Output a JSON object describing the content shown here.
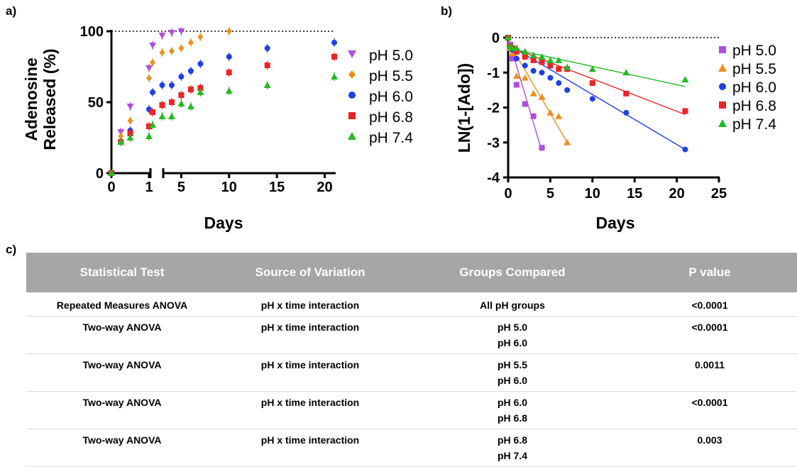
{
  "panels": {
    "a": "a)",
    "b": "b)",
    "c": "c)"
  },
  "chart_data": [
    {
      "type": "scatter",
      "panel": "a",
      "xlabel": "Days",
      "ylabel": "Adenosine Released (%)",
      "ylabel_lines": [
        "Adenosine",
        "Released (%)"
      ],
      "x_axis": "broken: 0–1 then 2–21",
      "x_ticks": [
        "0",
        "1",
        "5",
        "10",
        "15",
        "20"
      ],
      "y_ticks": [
        "0",
        "50",
        "100"
      ],
      "ylim": [
        0,
        100
      ],
      "reference_line": 100,
      "legend_position": "right",
      "series": [
        {
          "name": "pH 5.0",
          "color": "#b04ee0",
          "marker": "triangle-down",
          "points": [
            [
              0,
              0
            ],
            [
              0.25,
              29
            ],
            [
              0.5,
              47
            ],
            [
              1,
              74
            ],
            [
              2,
              90
            ],
            [
              3,
              97
            ],
            [
              4,
              99
            ],
            [
              5,
              100
            ]
          ]
        },
        {
          "name": "pH 5.5",
          "color": "#f0901c",
          "marker": "diamond",
          "points": [
            [
              0,
              0
            ],
            [
              0.25,
              26
            ],
            [
              0.5,
              37
            ],
            [
              1,
              67
            ],
            [
              2,
              78
            ],
            [
              3,
              85
            ],
            [
              4,
              86
            ],
            [
              5,
              88
            ],
            [
              6,
              92
            ],
            [
              7,
              96
            ],
            [
              10,
              100
            ]
          ]
        },
        {
          "name": "pH 6.0",
          "color": "#1f3fe8",
          "marker": "circle",
          "points": [
            [
              0,
              0
            ],
            [
              0.25,
              22
            ],
            [
              0.5,
              30
            ],
            [
              1,
              45
            ],
            [
              2,
              57
            ],
            [
              3,
              62
            ],
            [
              4,
              62
            ],
            [
              5,
              68
            ],
            [
              6,
              72
            ],
            [
              7,
              77
            ],
            [
              10,
              82
            ],
            [
              14,
              88
            ],
            [
              21,
              92
            ]
          ]
        },
        {
          "name": "pH 6.8",
          "color": "#ef2323",
          "marker": "square",
          "points": [
            [
              0,
              0
            ],
            [
              0.25,
              22
            ],
            [
              0.5,
              28
            ],
            [
              1,
              33
            ],
            [
              2,
              43
            ],
            [
              3,
              48
            ],
            [
              4,
              50
            ],
            [
              5,
              55
            ],
            [
              6,
              59
            ],
            [
              7,
              60
            ],
            [
              10,
              71
            ],
            [
              14,
              76
            ],
            [
              21,
              82
            ]
          ]
        },
        {
          "name": "pH 7.4",
          "color": "#22bb22",
          "marker": "triangle-up",
          "points": [
            [
              0,
              0
            ],
            [
              0.25,
              22
            ],
            [
              0.5,
              25
            ],
            [
              1,
              26
            ],
            [
              2,
              34
            ],
            [
              3,
              40
            ],
            [
              4,
              40
            ],
            [
              5,
              49
            ],
            [
              6,
              47
            ],
            [
              7,
              57
            ],
            [
              10,
              58
            ],
            [
              14,
              62
            ],
            [
              21,
              68
            ]
          ]
        }
      ]
    },
    {
      "type": "scatter",
      "panel": "b",
      "xlabel": "Days",
      "ylabel": "LN(1-[Ado])",
      "x_ticks": [
        "0",
        "5",
        "10",
        "15",
        "20",
        "25"
      ],
      "y_ticks": [
        "0",
        "-1",
        "-2",
        "-3",
        "-4"
      ],
      "xlim": [
        0,
        25
      ],
      "ylim": [
        -4,
        0
      ],
      "reference_line": 0,
      "fit_lines": true,
      "legend_position": "right",
      "series": [
        {
          "name": "pH 5.0",
          "color": "#b04ee0",
          "marker": "square",
          "points": [
            [
              0,
              0
            ],
            [
              0.25,
              -0.2
            ],
            [
              0.5,
              -0.6
            ],
            [
              1,
              -1.35
            ],
            [
              2,
              -1.9
            ],
            [
              3,
              -2.25
            ],
            [
              4,
              -3.15
            ]
          ],
          "fit": [
            [
              0,
              0
            ],
            [
              4,
              -3.25
            ]
          ]
        },
        {
          "name": "pH 5.5",
          "color": "#f0901c",
          "marker": "triangle-up",
          "points": [
            [
              0,
              0
            ],
            [
              0.25,
              -0.3
            ],
            [
              0.5,
              -0.45
            ],
            [
              1,
              -1.1
            ],
            [
              2,
              -1.15
            ],
            [
              3,
              -1.6
            ],
            [
              4,
              -1.7
            ],
            [
              5,
              -2.15
            ],
            [
              6,
              -2.25
            ],
            [
              7,
              -3.0
            ]
          ],
          "fit": [
            [
              0,
              -0.1
            ],
            [
              7,
              -3.0
            ]
          ]
        },
        {
          "name": "pH 6.0",
          "color": "#1f3fe8",
          "marker": "circle",
          "points": [
            [
              0,
              0
            ],
            [
              0.25,
              -0.25
            ],
            [
              0.5,
              -0.35
            ],
            [
              1,
              -0.6
            ],
            [
              2,
              -0.8
            ],
            [
              3,
              -0.95
            ],
            [
              4,
              -1.0
            ],
            [
              5,
              -1.15
            ],
            [
              6,
              -1.3
            ],
            [
              7,
              -1.5
            ],
            [
              10,
              -1.75
            ],
            [
              14,
              -2.15
            ],
            [
              21,
              -3.2
            ]
          ],
          "fit": [
            [
              0,
              -0.2
            ],
            [
              21,
              -3.2
            ]
          ]
        },
        {
          "name": "pH 6.8",
          "color": "#ef2323",
          "marker": "square",
          "points": [
            [
              0,
              0
            ],
            [
              0.25,
              -0.25
            ],
            [
              0.5,
              -0.3
            ],
            [
              1,
              -0.4
            ],
            [
              2,
              -0.55
            ],
            [
              3,
              -0.65
            ],
            [
              4,
              -0.7
            ],
            [
              5,
              -0.8
            ],
            [
              6,
              -0.9
            ],
            [
              7,
              -0.9
            ],
            [
              10,
              -1.3
            ],
            [
              14,
              -1.6
            ],
            [
              21,
              -2.1
            ]
          ],
          "fit": [
            [
              0,
              -0.25
            ],
            [
              21,
              -2.2
            ]
          ]
        },
        {
          "name": "pH 7.4",
          "color": "#22bb22",
          "marker": "triangle-up",
          "points": [
            [
              0,
              0
            ],
            [
              0.25,
              -0.25
            ],
            [
              0.5,
              -0.3
            ],
            [
              1,
              -0.3
            ],
            [
              2,
              -0.4
            ],
            [
              3,
              -0.5
            ],
            [
              4,
              -0.55
            ],
            [
              5,
              -0.65
            ],
            [
              6,
              -0.65
            ],
            [
              7,
              -0.85
            ],
            [
              10,
              -0.9
            ],
            [
              14,
              -1.0
            ],
            [
              21,
              -1.2
            ]
          ],
          "fit": [
            [
              0,
              -0.3
            ],
            [
              21,
              -1.4
            ]
          ]
        }
      ]
    }
  ],
  "table": {
    "headers": [
      "Statistical Test",
      "Source of Variation",
      "Groups Compared",
      "P value"
    ],
    "rows": [
      {
        "test": "Repeated Measures ANOVA",
        "source": "pH x time interaction",
        "groups": [
          "All pH groups"
        ],
        "p": "<0.0001"
      },
      {
        "test": "Two-way ANOVA",
        "source": "pH x time interaction",
        "groups": [
          "pH 5.0",
          "pH 6.0"
        ],
        "p": "<0.0001"
      },
      {
        "test": "Two-way ANOVA",
        "source": "pH x time interaction",
        "groups": [
          "pH 5.5",
          "pH 6.0"
        ],
        "p": "0.0011"
      },
      {
        "test": "Two-way ANOVA",
        "source": "pH x time interaction",
        "groups": [
          "pH 6.0",
          "pH 6.8"
        ],
        "p": "<0.0001"
      },
      {
        "test": "Two-way ANOVA",
        "source": "pH x time interaction",
        "groups": [
          "pH 6.8",
          "pH 7.4"
        ],
        "p": "0.003"
      }
    ]
  }
}
